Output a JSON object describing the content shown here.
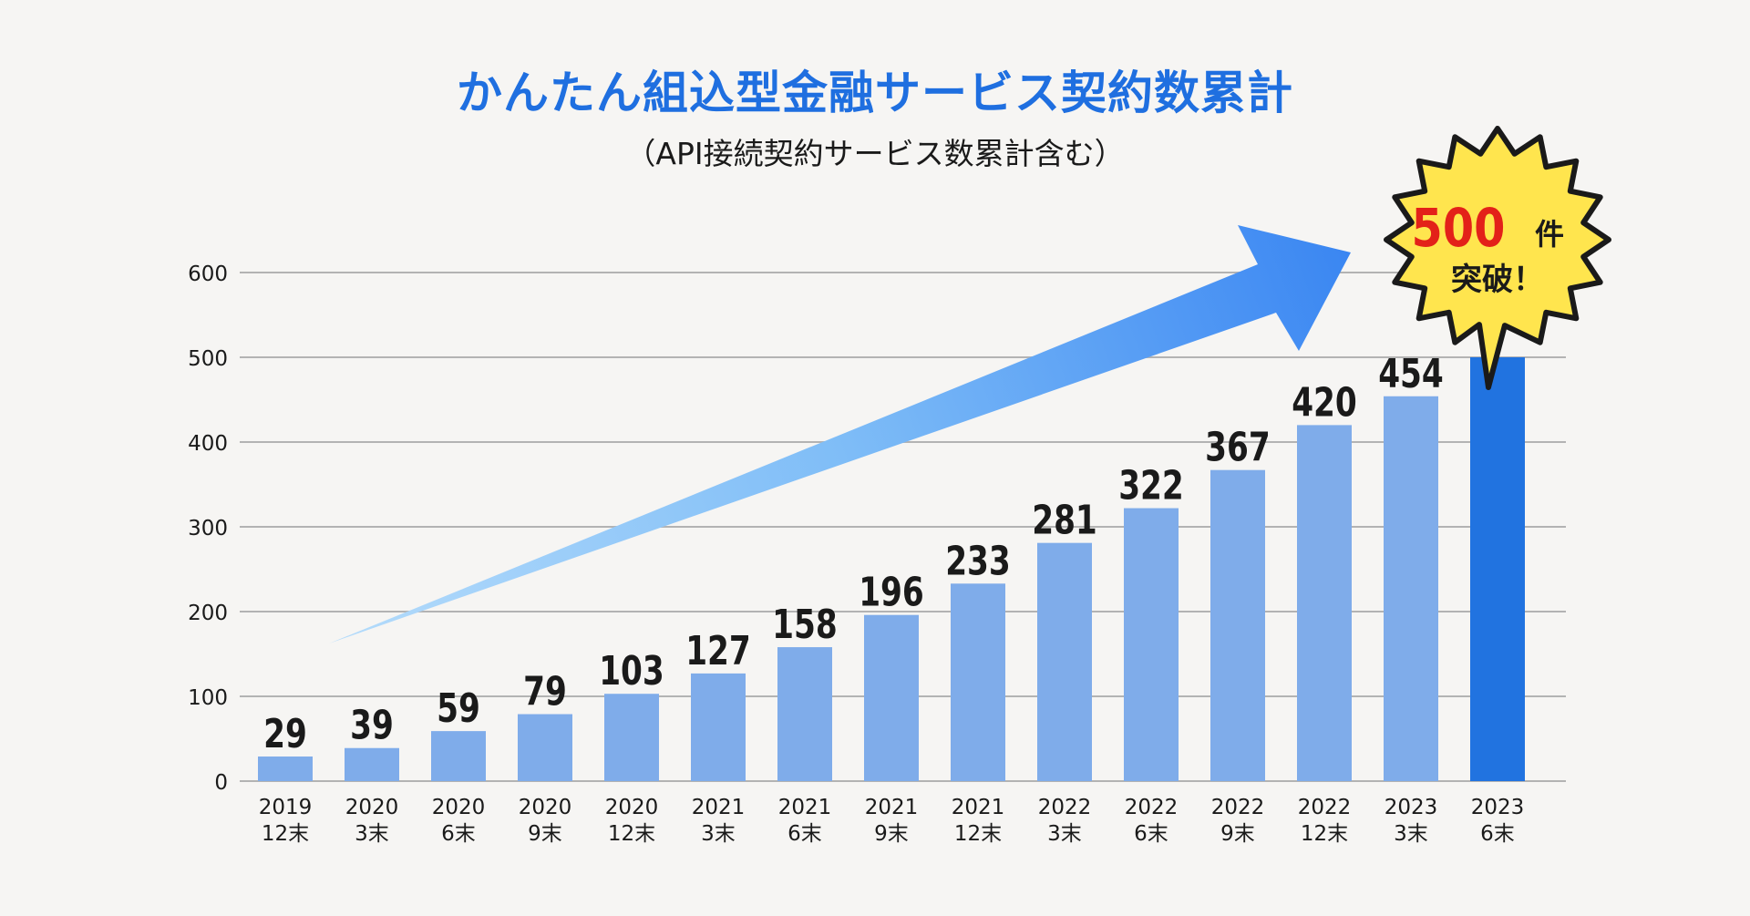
{
  "chart_data": {
    "type": "bar",
    "title": "かんたん組込型金融サービス契約数累計",
    "subtitle": "（API接続契約サービス数累計含む）",
    "categories": [
      [
        "2019",
        "12末"
      ],
      [
        "2020",
        "3末"
      ],
      [
        "2020",
        "6末"
      ],
      [
        "2020",
        "9末"
      ],
      [
        "2020",
        "12末"
      ],
      [
        "2021",
        "3末"
      ],
      [
        "2021",
        "6末"
      ],
      [
        "2021",
        "9末"
      ],
      [
        "2021",
        "12末"
      ],
      [
        "2022",
        "3末"
      ],
      [
        "2022",
        "6末"
      ],
      [
        "2022",
        "9末"
      ],
      [
        "2022",
        "12末"
      ],
      [
        "2023",
        "3末"
      ],
      [
        "2023",
        "6末"
      ]
    ],
    "values": [
      29,
      39,
      59,
      79,
      103,
      127,
      158,
      196,
      233,
      281,
      322,
      367,
      420,
      454,
      500
    ],
    "data_labels": [
      "29",
      "39",
      "59",
      "79",
      "103",
      "127",
      "158",
      "196",
      "233",
      "281",
      "322",
      "367",
      "420",
      "454",
      ""
    ],
    "ylim": [
      0,
      600
    ],
    "yticks": [
      "0",
      "100",
      "200",
      "300",
      "400",
      "500",
      "600"
    ],
    "grid": true,
    "colors": {
      "bar": "#7facea",
      "highlight_bar": "#2173e0",
      "title": "#1f6fe0",
      "burst": "#ffe54e",
      "burst_number": "#e32119"
    },
    "callout": {
      "number": "500",
      "unit": "件",
      "text": "突破！"
    }
  }
}
